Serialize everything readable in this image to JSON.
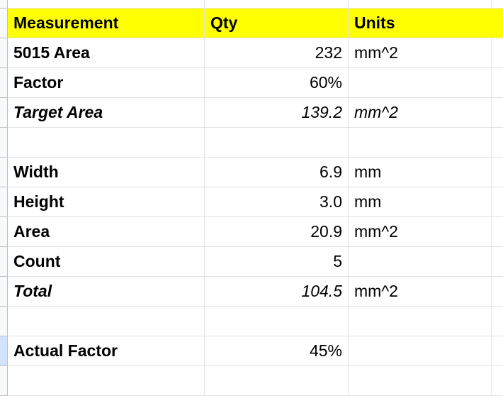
{
  "header": {
    "measurement": "Measurement",
    "qty": "Qty",
    "units": "Units",
    "color": "#ffff00"
  },
  "rows": [
    {
      "label": "5015 Area",
      "qty": "232",
      "units": "mm^2",
      "label_italic": false,
      "qty_italic": false,
      "units_italic": false
    },
    {
      "label": "Factor",
      "qty": "60%",
      "units": "",
      "label_italic": false,
      "qty_italic": false,
      "units_italic": false
    },
    {
      "label": "Target Area",
      "qty": "139.2",
      "units": "mm^2",
      "label_italic": true,
      "qty_italic": true,
      "units_italic": true
    },
    {
      "label": "",
      "qty": "",
      "units": ""
    },
    {
      "label": "Width",
      "qty": "6.9",
      "units": "mm"
    },
    {
      "label": "Height",
      "qty": "3.0",
      "units": "mm"
    },
    {
      "label": "Area",
      "qty": "20.9",
      "units": "mm^2"
    },
    {
      "label": "Count",
      "qty": "5",
      "units": ""
    },
    {
      "label": "Total",
      "qty": "104.5",
      "units": "mm^2",
      "label_italic": true,
      "qty_italic": true,
      "units_italic": false
    },
    {
      "label": "",
      "qty": "",
      "units": ""
    },
    {
      "label": "Actual Factor",
      "qty": "45%",
      "units": "",
      "selected": true
    },
    {
      "label": "",
      "qty": "",
      "units": ""
    }
  ]
}
